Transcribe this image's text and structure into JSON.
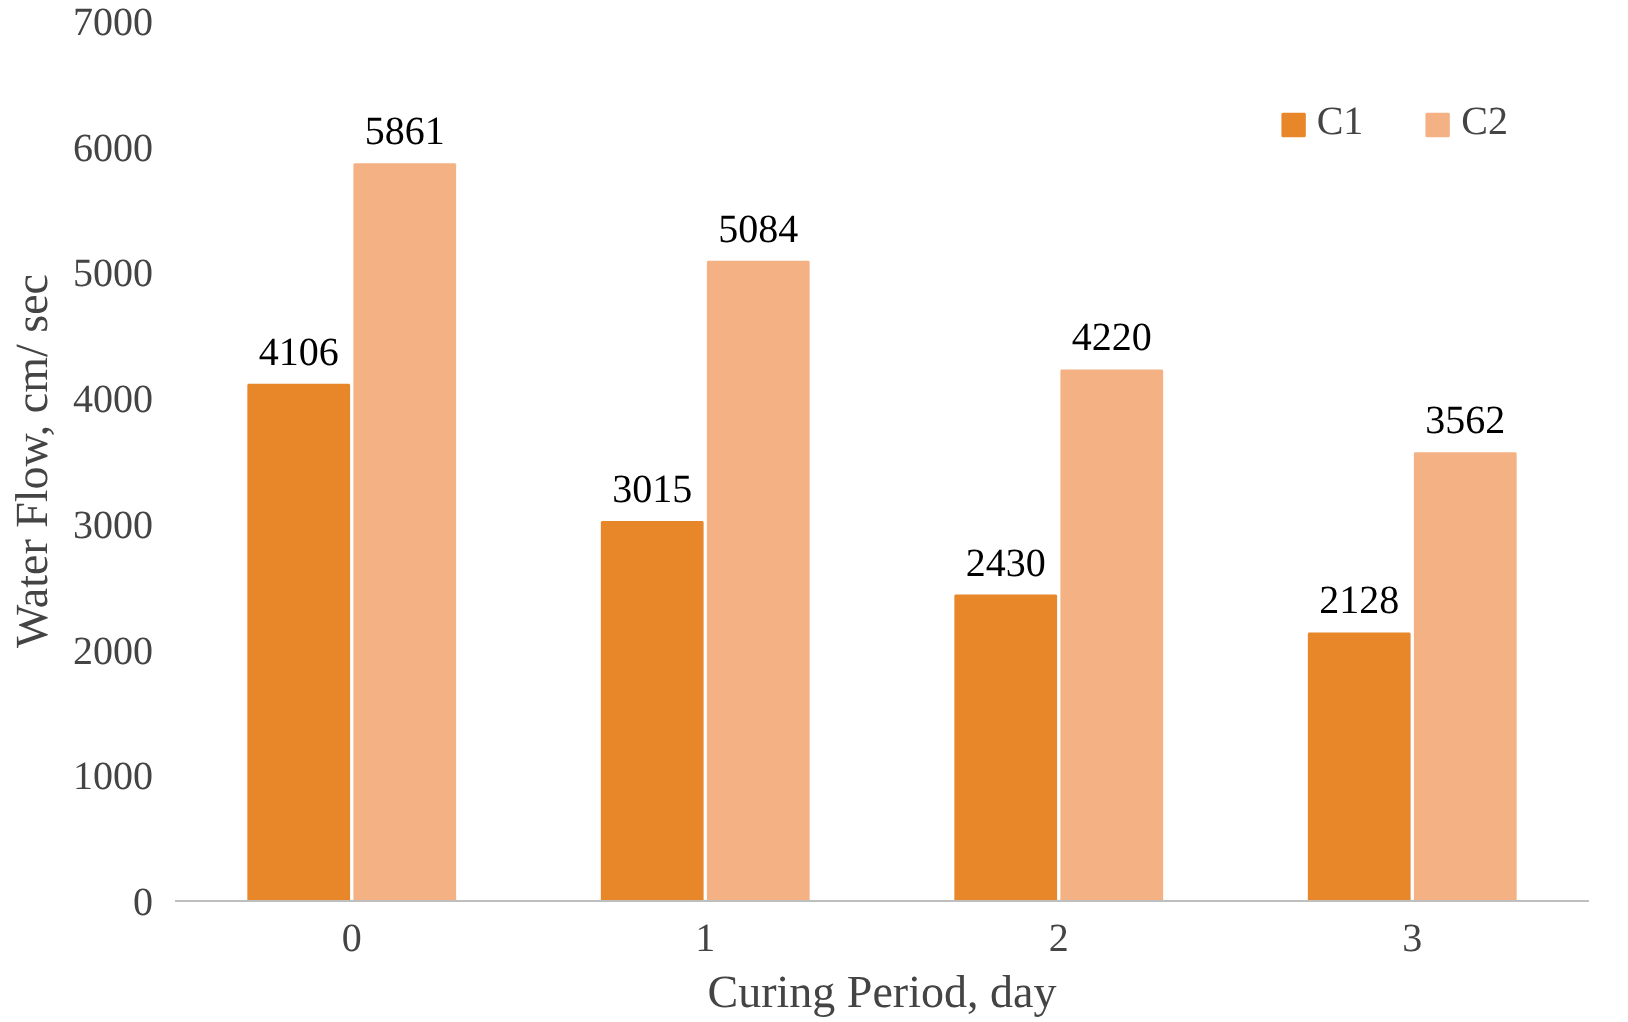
{
  "chart_data": {
    "type": "bar",
    "xlabel": "Curing Period, day",
    "ylabel": "Water Flow, cm/ sec",
    "categories": [
      "0",
      "1",
      "2",
      "3"
    ],
    "series": [
      {
        "name": "C1",
        "color": "#e8862a",
        "values": [
          4106,
          3015,
          2430,
          2128
        ]
      },
      {
        "name": "C2",
        "color": "#f4b183",
        "values": [
          5861,
          5084,
          4220,
          3562
        ]
      }
    ],
    "ylim": [
      0,
      7000
    ],
    "yticks": [
      0,
      1000,
      2000,
      3000,
      4000,
      5000,
      6000,
      7000
    ],
    "grid": false,
    "legend": "top right",
    "data_labels": true
  }
}
